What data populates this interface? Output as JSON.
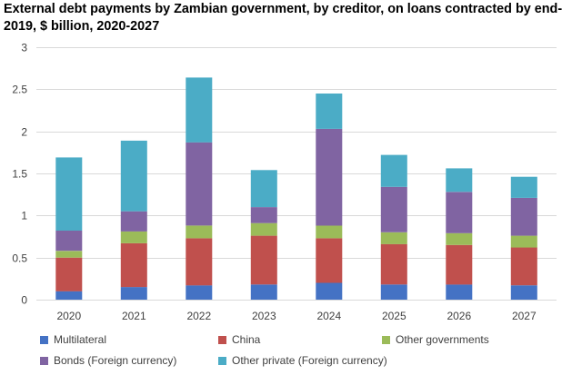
{
  "chart_data": {
    "type": "bar",
    "stacked": true,
    "title": "External debt payments by Zambian government, by creditor, on loans contracted by end-2019, $ billion, 2020-2027",
    "xlabel": "",
    "ylabel": "",
    "ylim": [
      0,
      3
    ],
    "yticks": [
      "0",
      "0.5",
      "1",
      "1.5",
      "2",
      "2.5",
      "3"
    ],
    "grid": true,
    "legend_position": "bottom",
    "categories": [
      "2020",
      "2021",
      "2022",
      "2023",
      "2024",
      "2025",
      "2026",
      "2027"
    ],
    "series": [
      {
        "name": "Multilateral",
        "color": "#4472C4",
        "values": [
          0.1,
          0.15,
          0.17,
          0.18,
          0.2,
          0.18,
          0.18,
          0.17
        ]
      },
      {
        "name": "China",
        "color": "#C0504D",
        "values": [
          0.4,
          0.52,
          0.56,
          0.58,
          0.53,
          0.48,
          0.47,
          0.45
        ]
      },
      {
        "name": "Other governments",
        "color": "#9BBB59",
        "values": [
          0.08,
          0.14,
          0.15,
          0.15,
          0.15,
          0.14,
          0.14,
          0.14
        ]
      },
      {
        "name": "Bonds (Foreign currency)",
        "color": "#8064A2",
        "values": [
          0.24,
          0.24,
          0.99,
          0.19,
          1.15,
          0.54,
          0.49,
          0.45
        ]
      },
      {
        "name": "Other private (Foreign currency)",
        "color": "#4BACC6",
        "values": [
          0.87,
          0.84,
          0.77,
          0.44,
          0.42,
          0.38,
          0.28,
          0.25
        ]
      }
    ]
  }
}
